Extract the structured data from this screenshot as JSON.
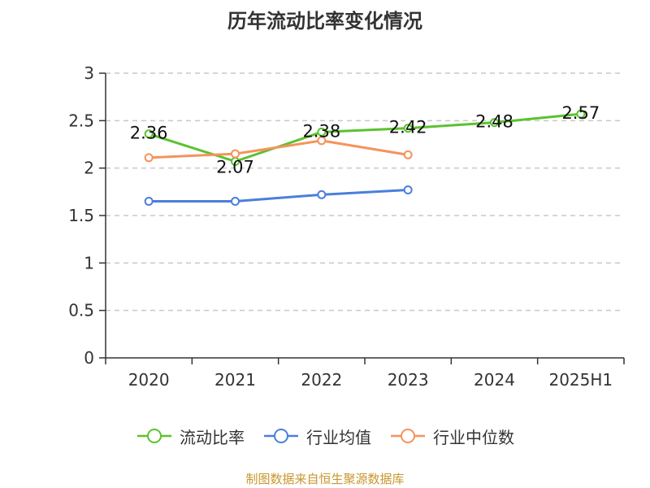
{
  "chart_data": {
    "type": "line",
    "title": "历年流动比率变化情况",
    "categories": [
      "2020",
      "2021",
      "2022",
      "2023",
      "2024",
      "2025H1"
    ],
    "ylim": [
      0,
      3
    ],
    "yticks": [
      0,
      0.5,
      1,
      1.5,
      2,
      2.5,
      3
    ],
    "ytick_labels": [
      "0",
      "0.5",
      "1",
      "1.5",
      "2",
      "2.5",
      "3"
    ],
    "grid": true,
    "legend_position": "bottom",
    "series": [
      {
        "name": "流动比率",
        "color": "#5bc22e",
        "values": [
          2.36,
          2.07,
          2.38,
          2.42,
          2.48,
          2.57
        ],
        "labels": [
          "2.36",
          "2.07",
          "2.38",
          "2.42",
          "2.48",
          "2.57"
        ],
        "show_labels": true
      },
      {
        "name": "行业均值",
        "color": "#4a7fdc",
        "values": [
          1.65,
          1.65,
          1.72,
          1.77,
          null,
          null
        ],
        "show_labels": false
      },
      {
        "name": "行业中位数",
        "color": "#f4935c",
        "values": [
          2.11,
          2.15,
          2.29,
          2.14,
          null,
          null
        ],
        "show_labels": false
      }
    ]
  },
  "footer": {
    "source": "制图数据来自恒生聚源数据库"
  }
}
